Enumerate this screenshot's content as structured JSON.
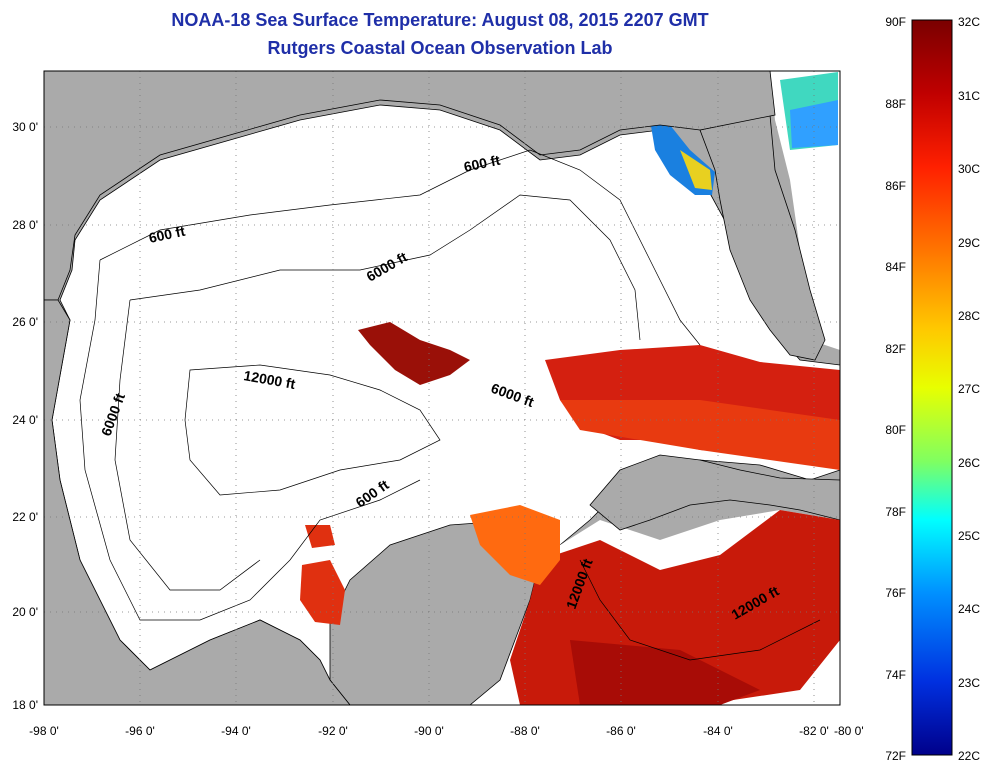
{
  "header": {
    "title": "NOAA-18 Sea Surface Temperature:  August 08, 2015 2207 GMT",
    "subtitle": "Rutgers Coastal Ocean Observation Lab"
  },
  "map": {
    "longitude_labels": [
      "-98 0'",
      "-96 0'",
      "-94 0'",
      "-92 0'",
      "-90 0'",
      "-88 0'",
      "-86 0'",
      "-84 0'",
      "-82 0'",
      "-80 0'"
    ],
    "latitude_labels": [
      "30 0'",
      "28 0'",
      "26 0'",
      "24 0'",
      "22 0'",
      "20 0'",
      "18 0'"
    ],
    "contour_labels": [
      "600 ft",
      "600 ft",
      "6000 ft",
      "6000 ft",
      "6000 ft",
      "12000 ft",
      "600 ft",
      "12000 ft",
      "12000 ft"
    ],
    "colors": {
      "land": "#aaaaaa",
      "ocean_no_data": "#ffffff",
      "grid": "#888888"
    }
  },
  "colorbar": {
    "fahrenheit_labels": [
      "90F",
      "88F",
      "86F",
      "84F",
      "82F",
      "80F",
      "78F",
      "76F",
      "74F",
      "72F"
    ],
    "celsius_labels": [
      "32C",
      "31C",
      "30C",
      "29C",
      "28C",
      "27C",
      "26C",
      "25C",
      "24C",
      "23C",
      "22C"
    ],
    "colors": [
      "#7a0000",
      "#c00000",
      "#ff2000",
      "#ff7a00",
      "#ffc800",
      "#e8ff00",
      "#80ff60",
      "#00ffff",
      "#0090ff",
      "#0030e0",
      "#00008a"
    ]
  }
}
